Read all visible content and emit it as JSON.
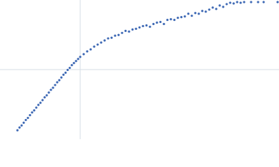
{
  "chart_data": {
    "type": "scatter",
    "color": "#3d68b4",
    "xlim": [
      0,
      400
    ],
    "ylim": [
      0,
      202
    ],
    "x": [
      25,
      28,
      31,
      34,
      37,
      40,
      43,
      46,
      49,
      52,
      55,
      58,
      61,
      64,
      67,
      70,
      73,
      76,
      79,
      82,
      85,
      88,
      91,
      94,
      97,
      100,
      103,
      106,
      109,
      112,
      115,
      120,
      125,
      130,
      135,
      140,
      145,
      150,
      155,
      160,
      165,
      170,
      175,
      180,
      185,
      190,
      195,
      200,
      205,
      210,
      215,
      220,
      225,
      230,
      235,
      240,
      245,
      250,
      255,
      260,
      265,
      270,
      275,
      280,
      285,
      290,
      295,
      300,
      305,
      310,
      315,
      320,
      325,
      330,
      335,
      340,
      345,
      350,
      360,
      370,
      378,
      398
    ],
    "y": [
      13,
      17,
      20,
      24,
      28,
      31,
      35,
      39,
      42,
      46,
      50,
      53,
      57,
      61,
      64,
      68,
      72,
      75,
      79,
      83,
      86,
      90,
      94,
      97,
      101,
      104,
      108,
      111,
      114,
      117,
      120,
      124,
      128,
      131,
      135,
      138,
      141,
      144,
      147,
      148,
      151,
      152,
      155,
      158,
      157,
      160,
      161,
      163,
      165,
      166,
      164,
      168,
      170,
      171,
      168,
      174,
      175,
      174,
      177,
      178,
      179,
      183,
      180,
      184,
      183,
      187,
      186,
      189,
      192,
      190,
      195,
      193,
      197,
      199,
      198,
      200,
      199,
      200,
      200,
      200,
      200,
      200
    ]
  }
}
